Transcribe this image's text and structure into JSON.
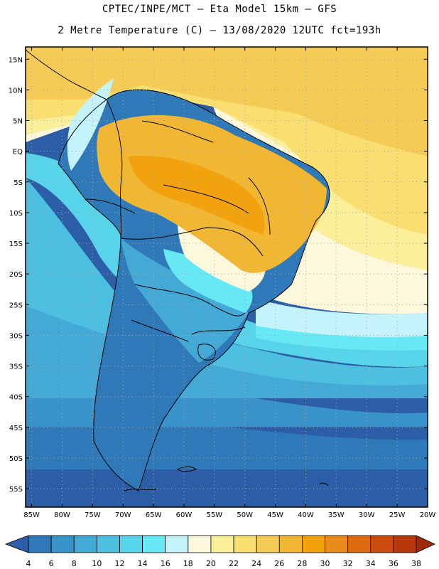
{
  "header": {
    "line1": "CPTEC/INPE/MCT –  Eta Model 15km – GFS",
    "line2": "2 Metre Temperature (C) – 13/08/2020 12UTC fct=193h"
  },
  "map": {
    "lat_ticks": [
      "15N",
      "10N",
      "5N",
      "EQ",
      "5S",
      "10S",
      "15S",
      "20S",
      "25S",
      "30S",
      "35S",
      "40S",
      "45S",
      "50S",
      "55S"
    ],
    "lon_ticks": [
      "85W",
      "80W",
      "75W",
      "70W",
      "65W",
      "60W",
      "55W",
      "50W",
      "45W",
      "40W",
      "35W",
      "30W",
      "25W",
      "20W"
    ],
    "lat_range": [
      17,
      -58
    ],
    "lon_range": [
      -86,
      -20
    ]
  },
  "colorbar": {
    "labels": [
      "4",
      "6",
      "8",
      "10",
      "12",
      "14",
      "16",
      "18",
      "20",
      "22",
      "24",
      "26",
      "28",
      "30",
      "32",
      "34",
      "36",
      "38"
    ],
    "colors": [
      "#2b5ea6",
      "#2f79b8",
      "#3a93c8",
      "#45a9d6",
      "#4dbfe0",
      "#57d3ea",
      "#66e8f5",
      "#c5f3fb",
      "#fdf8dc",
      "#fcef9c",
      "#f9df72",
      "#f5cb56",
      "#f2b732",
      "#f2a20d",
      "#ea8c1c",
      "#e06a10",
      "#cd4b0c",
      "#b6380a",
      "#9e2c0a"
    ]
  }
}
